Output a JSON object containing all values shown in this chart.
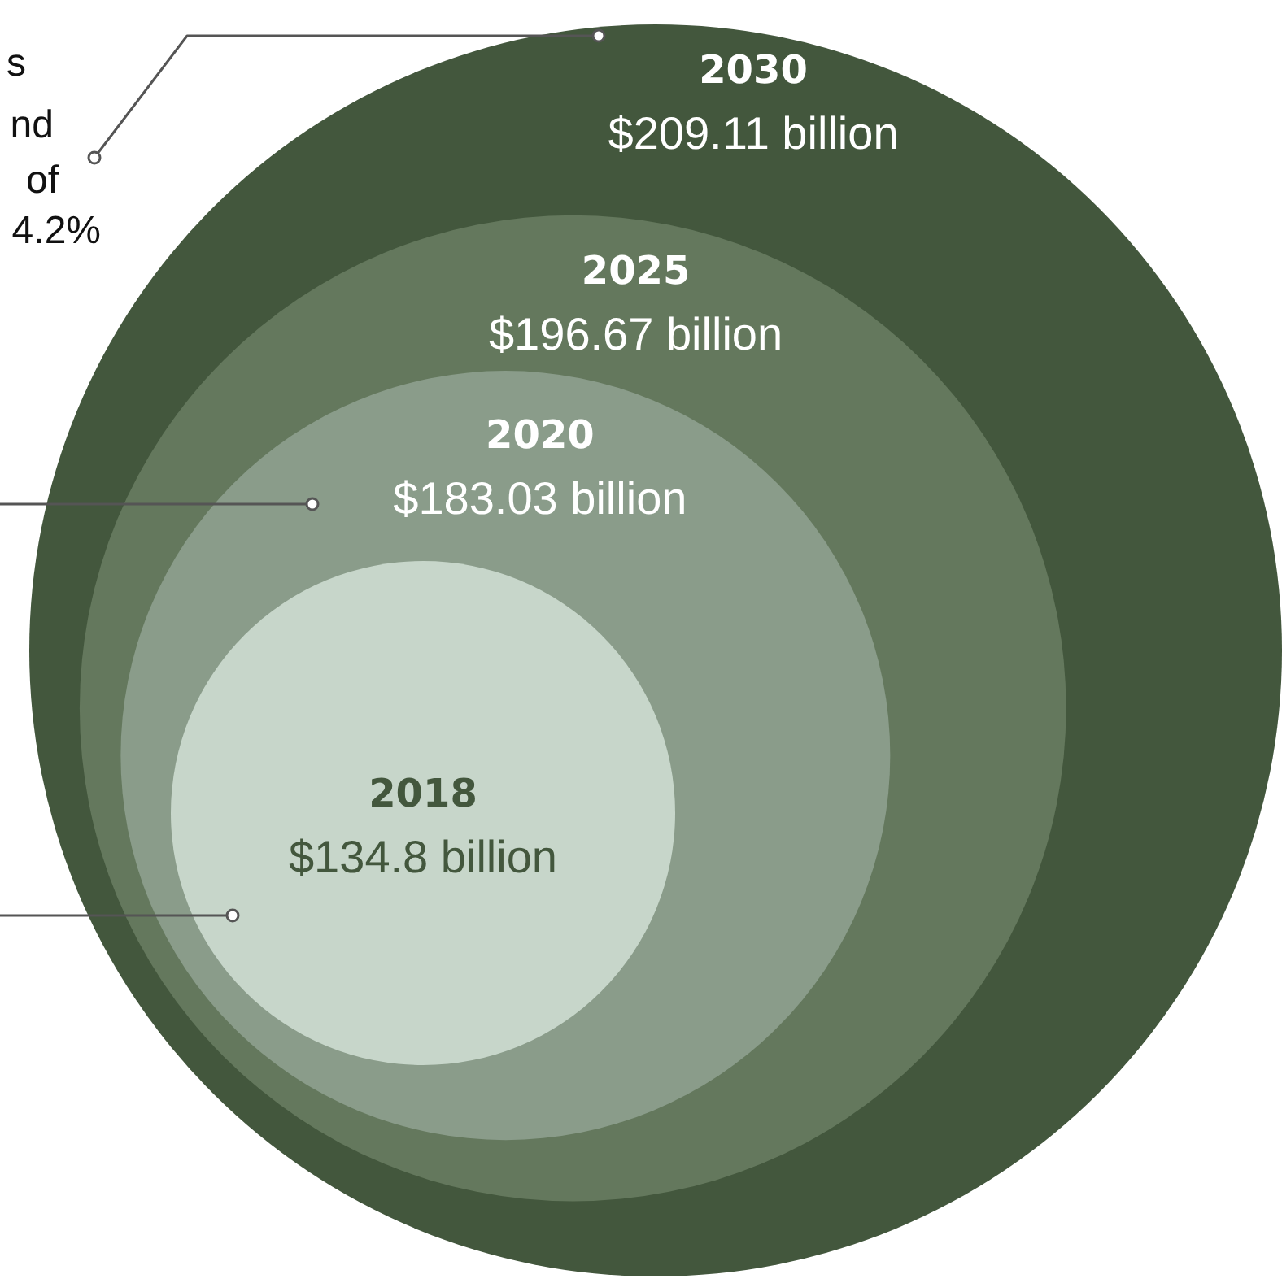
{
  "chart_data": {
    "type": "other",
    "categories": [
      "2030",
      "2025",
      "2020",
      "2018"
    ],
    "values": [
      209.11,
      196.67,
      183.03,
      134.8
    ],
    "value_labels": [
      "$209.11 billion",
      "$196.67 billion",
      "$183.03 billion",
      "$134.8 billion"
    ],
    "colors": [
      "#43573d",
      "#64785d",
      "#8a9c8a",
      "#c7d6ca"
    ],
    "annotations": [
      "s",
      "nd",
      "of",
      "4.2%"
    ]
  }
}
